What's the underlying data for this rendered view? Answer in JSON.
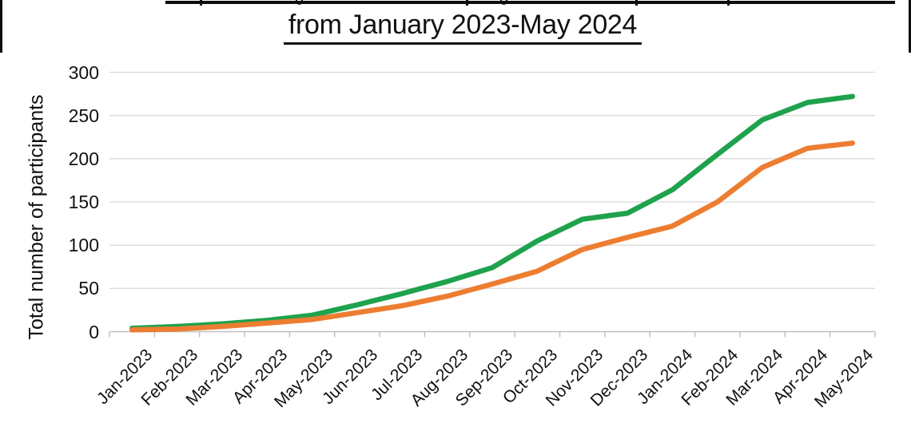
{
  "title": {
    "line2": "from January 2023-May 2024",
    "first_line_cropped": true
  },
  "chart_data": {
    "type": "line",
    "title": "from January 2023-May 2024",
    "xlabel": "",
    "ylabel": "Total number of participants",
    "ylim": [
      0,
      300
    ],
    "ytick_step": 50,
    "grid": true,
    "legend": false,
    "categories": [
      "Jan-2023",
      "Feb-2023",
      "Mar-2023",
      "Apr-2023",
      "May-2023",
      "Jun-2023",
      "Jul-2023",
      "Aug-2023",
      "Sep-2023",
      "Oct-2023",
      "Nov-2023",
      "Dec-2023",
      "Jan-2024",
      "Feb-2024",
      "Mar-2024",
      "Apr-2024",
      "May-2024"
    ],
    "series": [
      {
        "color_name": "green",
        "color": "#1FA24D",
        "values": [
          4,
          6,
          9,
          13,
          19,
          31,
          44,
          58,
          74,
          105,
          130,
          137,
          164,
          205,
          245,
          265,
          272
        ]
      },
      {
        "color_name": "orange",
        "color": "#ED7D31",
        "values": [
          2,
          3,
          6,
          10,
          14,
          22,
          30,
          41,
          55,
          70,
          95,
          109,
          122,
          150,
          190,
          212,
          218
        ]
      }
    ],
    "grid_color": "#D9D9D9",
    "axis_color": "#BFBFBF",
    "text_color": "#111111"
  }
}
